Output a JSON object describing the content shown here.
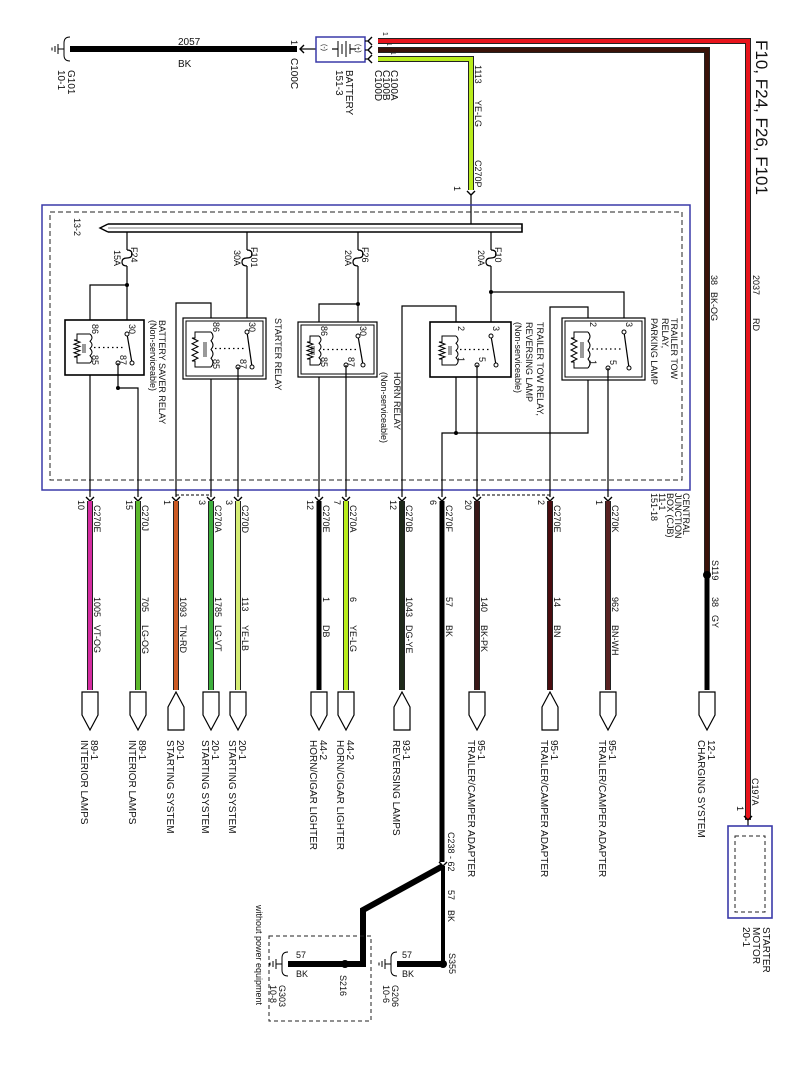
{
  "title": "F10, F24, F26, F101",
  "ground_g101": {
    "id": "G101",
    "page": "10-1"
  },
  "wire_2057": {
    "circuit": "2057",
    "color": "BK"
  },
  "c100c": {
    "pin": "1",
    "id": "C100C"
  },
  "battery": {
    "name": "BATTERY",
    "page": "151-3",
    "pos": "(+)",
    "neg": "(-)"
  },
  "battery_connectors": [
    {
      "id": "C100A",
      "pin": "1"
    },
    {
      "id": "C100B",
      "pin": "1"
    },
    {
      "id": "C100D",
      "pin": "1"
    }
  ],
  "feed_red": {
    "circuit": "2037",
    "color": "RD",
    "hex": "#e8141c"
  },
  "feed_brown": {
    "circuit": "38",
    "color": "BK-OG",
    "hex": "#3a1208"
  },
  "feed_yelg": {
    "circuit": "1113",
    "color": "YE-LG",
    "hex": "#b8ec1c"
  },
  "c270p": {
    "id": "C270P",
    "pin": "1"
  },
  "cjb": {
    "lines": [
      "CENTRAL",
      "JUNCTION",
      "BOX (CJB)",
      "11-1",
      "151-18"
    ],
    "bus": "13-2",
    "border_hex": "#3a3aa8"
  },
  "fuses": [
    {
      "id": "F24",
      "rating": "15A"
    },
    {
      "id": "F101",
      "rating": "30A"
    },
    {
      "id": "F26",
      "rating": "20A"
    },
    {
      "id": "F10",
      "rating": "20A"
    }
  ],
  "relays": [
    {
      "lines": [
        "BATTERY SAVER RELAY",
        "(Non-serviceable)"
      ],
      "pins": [
        "86",
        "85",
        "30",
        "87"
      ]
    },
    {
      "lines": [
        "STARTER RELAY"
      ],
      "pins": [
        "86",
        "85",
        "30",
        "87"
      ]
    },
    {
      "lines": [
        "HORN RELAY",
        "(Non-serviceable)"
      ],
      "pins": [
        "86",
        "85",
        "30",
        "87"
      ]
    },
    {
      "lines": [
        "TRAILER TOW RELAY,",
        "REVERSING LAMP",
        "(Non-serviceable)"
      ],
      "pins": [
        "2",
        "1",
        "3",
        "5"
      ]
    },
    {
      "lines": [
        "TRAILER TOW",
        "RELAY,",
        "PARKING LAMP"
      ],
      "pins": [
        "2",
        "1",
        "3",
        "5"
      ]
    }
  ],
  "outputs": [
    {
      "connector": "C270E",
      "pin": "10",
      "circuit": "1005",
      "color": "VT-OG",
      "hex": "#d42ca0",
      "dest_page": "89-1",
      "dest": "INTERIOR LAMPS",
      "shape": "down"
    },
    {
      "connector": "C270J",
      "pin": "15",
      "circuit": "705",
      "color": "LG-OG",
      "hex": "#5cb82c",
      "dest_page": "89-1",
      "dest": "INTERIOR LAMPS",
      "shape": "down"
    },
    {
      "connector": "",
      "pin": "1",
      "circuit": "1093",
      "color": "TN-RD",
      "hex": "#cc5a24",
      "dest_page": "20-1",
      "dest": "STARTING SYSTEM",
      "shape": "up"
    },
    {
      "connector": "C270A",
      "pin": "3",
      "circuit": "1785",
      "color": "LG-VT",
      "hex": "#3cae3c",
      "dest_page": "20-1",
      "dest": "STARTING SYSTEM",
      "shape": "down"
    },
    {
      "connector": "C270D",
      "pin": "3",
      "circuit": "113",
      "color": "YE-LB",
      "hex": "#d4ec74",
      "dest_page": "20-1",
      "dest": "STARTING SYSTEM",
      "shape": "down"
    },
    {
      "connector": "C270E",
      "pin": "12",
      "circuit": "1",
      "color": "DB",
      "hex": "#000000",
      "dest_page": "44-2",
      "dest": "HORN/CIGAR LIGHTER",
      "shape": "down"
    },
    {
      "connector": "C270A",
      "pin": "7",
      "circuit": "6",
      "color": "YE-LG",
      "hex": "#b8ec1c",
      "dest_page": "44-2",
      "dest": "HORN/CIGAR LIGHTER",
      "shape": "down"
    },
    {
      "connector": "C270B",
      "pin": "12",
      "circuit": "1043",
      "color": "DG-YE",
      "hex": "#1e2a1a",
      "dest_page": "93-1",
      "dest": "REVERSING LAMPS",
      "shape": "up"
    },
    {
      "connector": "C270F",
      "pin": "6",
      "circuit": "57",
      "color": "BK",
      "hex": "#000000",
      "dest_page": "",
      "dest": "",
      "shape": "none"
    },
    {
      "connector": "",
      "pin": "20",
      "circuit": "140",
      "color": "BK-PK",
      "hex": "#3a1818",
      "dest_page": "95-1",
      "dest": "TRAILER/CAMPER ADAPTER",
      "shape": "down"
    },
    {
      "connector": "C270E",
      "pin": "2",
      "circuit": "14",
      "color": "BN",
      "hex": "#4a0c10",
      "dest_page": "95-1",
      "dest": "TRAILER/CAMPER ADAPTER",
      "shape": "up"
    },
    {
      "connector": "C270K",
      "pin": "1",
      "circuit": "962",
      "color": "BN-WH",
      "hex": "#5a2222",
      "dest_page": "95-1",
      "dest": "TRAILER/CAMPER ADAPTER",
      "shape": "down"
    }
  ],
  "charging": {
    "splice": "S119",
    "circuit": "38",
    "color": "GY",
    "dest_page": "12-1",
    "dest": "CHARGING SYSTEM"
  },
  "c197a": {
    "id": "C197A",
    "pin": "1"
  },
  "starter_motor": {
    "lines": [
      "STARTER",
      "MOTOR",
      "20-1"
    ],
    "border_hex": "#3a3aa8"
  },
  "ground_circuit": {
    "c238": "C238 - 62",
    "circuit": "57",
    "color": "BK",
    "s355": "S355",
    "g206": "G206",
    "g206_page": "10-6",
    "s216": "S216",
    "g303": "G303",
    "g303_page": "10-8",
    "option_note": "without power equipment",
    "g206_circuit": "57",
    "g206_color": "BK",
    "g303_circuit": "57",
    "g303_color": "BK"
  }
}
